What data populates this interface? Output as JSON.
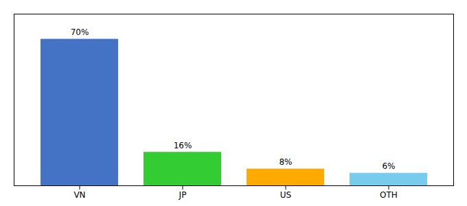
{
  "chart_data": {
    "type": "bar",
    "categories": [
      "VN",
      "JP",
      "US",
      "OTH"
    ],
    "values": [
      70,
      16,
      8,
      6
    ],
    "value_labels": [
      "70%",
      "16%",
      "8%",
      "6%"
    ],
    "colors": [
      "#4472c4",
      "#33cc33",
      "#ffaa00",
      "#77ccee"
    ],
    "data_labels": true,
    "ylim": [
      0,
      82
    ],
    "tick_labels": "x",
    "grid": false
  }
}
